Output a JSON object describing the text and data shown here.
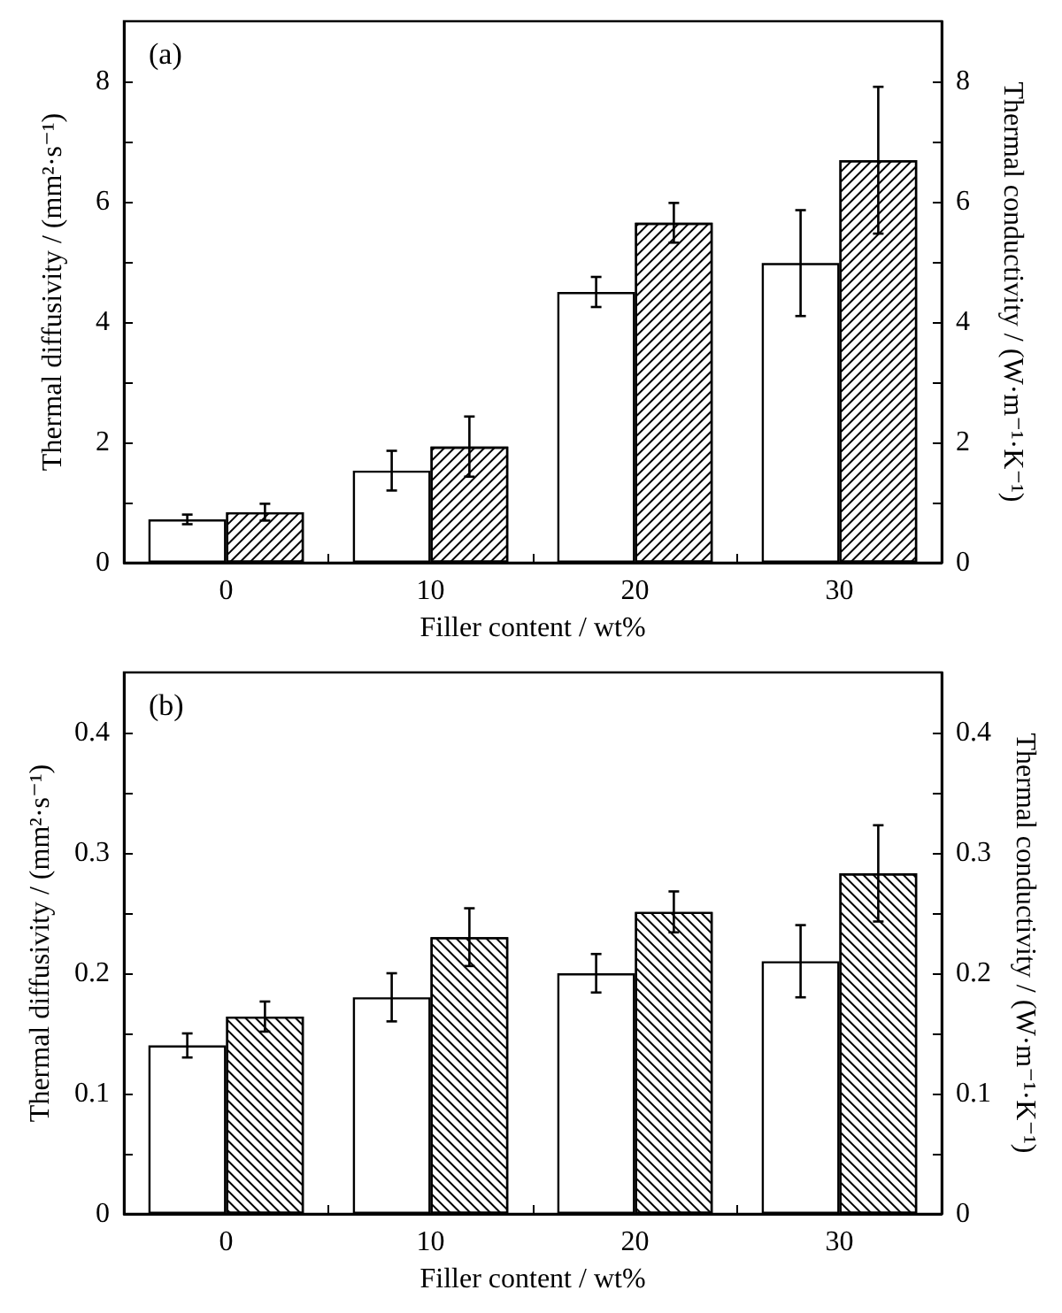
{
  "chart_data": [
    {
      "type": "bar",
      "annotations": [
        "(a)"
      ],
      "xlabel": "Filler content / wt%",
      "ylabel": "Thermal diffusivity / (mm²·s⁻¹)",
      "y2label": "Thermal conductivity / (W·m⁻¹·K⁻¹)",
      "categories": [
        "0",
        "10",
        "20",
        "30"
      ],
      "series": [
        {
          "color": "#ffffff",
          "values": [
            0.72,
            1.53,
            4.5,
            4.98
          ],
          "errors": [
            0.08,
            0.33,
            0.25,
            0.88
          ]
        },
        {
          "color": "#ffffff",
          "values": [
            0.84,
            1.93,
            5.65,
            6.69
          ],
          "errors": [
            0.14,
            0.5,
            0.33,
            1.22
          ]
        }
      ],
      "ylim": [
        0,
        9
      ],
      "yticks": [
        0,
        {
          "value": 1,
          "label": null
        },
        2,
        {
          "value": 3,
          "label": null
        },
        4,
        {
          "value": 5,
          "label": null
        },
        6,
        {
          "value": 7,
          "label": null
        },
        8
      ],
      "y2lim": [
        0,
        9
      ],
      "y2ticks": [
        0,
        {
          "value": 1,
          "label": null
        },
        2,
        {
          "value": 3,
          "label": null
        },
        4,
        {
          "value": 5,
          "label": null
        },
        6,
        {
          "value": 7,
          "label": null
        },
        8
      ]
    },
    {
      "type": "bar",
      "annotations": [
        "(b)"
      ],
      "xlabel": "Filler content / wt%",
      "ylabel": "Thermal diffusivity / (mm²·s⁻¹)",
      "y2label": "Thermal conductivity / (W·m⁻¹·K⁻¹)",
      "categories": [
        "0",
        "10",
        "20",
        "30"
      ],
      "series": [
        {
          "color": "#ffffff",
          "values": [
            0.14,
            0.18,
            0.2,
            0.21
          ],
          "errors": [
            0.01,
            0.02,
            0.016,
            0.03
          ]
        },
        {
          "color": "#ffffff",
          "values": [
            0.164,
            0.23,
            0.251,
            0.283
          ],
          "errors": [
            0.0125,
            0.024,
            0.017,
            0.04
          ]
        }
      ],
      "ylim": [
        0,
        0.45
      ],
      "yticks": [
        0,
        {
          "value": 0.05,
          "label": null
        },
        0.1,
        {
          "value": 0.15,
          "label": null
        },
        0.2,
        {
          "value": 0.25,
          "label": null
        },
        0.3,
        {
          "value": 0.35,
          "label": null
        },
        0.4
      ],
      "y2lim": [
        0,
        0.45
      ],
      "y2ticks": [
        0,
        {
          "value": 0.05,
          "label": null
        },
        0.1,
        {
          "value": 0.15,
          "label": null
        },
        0.2,
        {
          "value": 0.25,
          "label": null
        },
        0.3,
        {
          "value": 0.35,
          "label": null
        },
        0.4
      ]
    }
  ]
}
